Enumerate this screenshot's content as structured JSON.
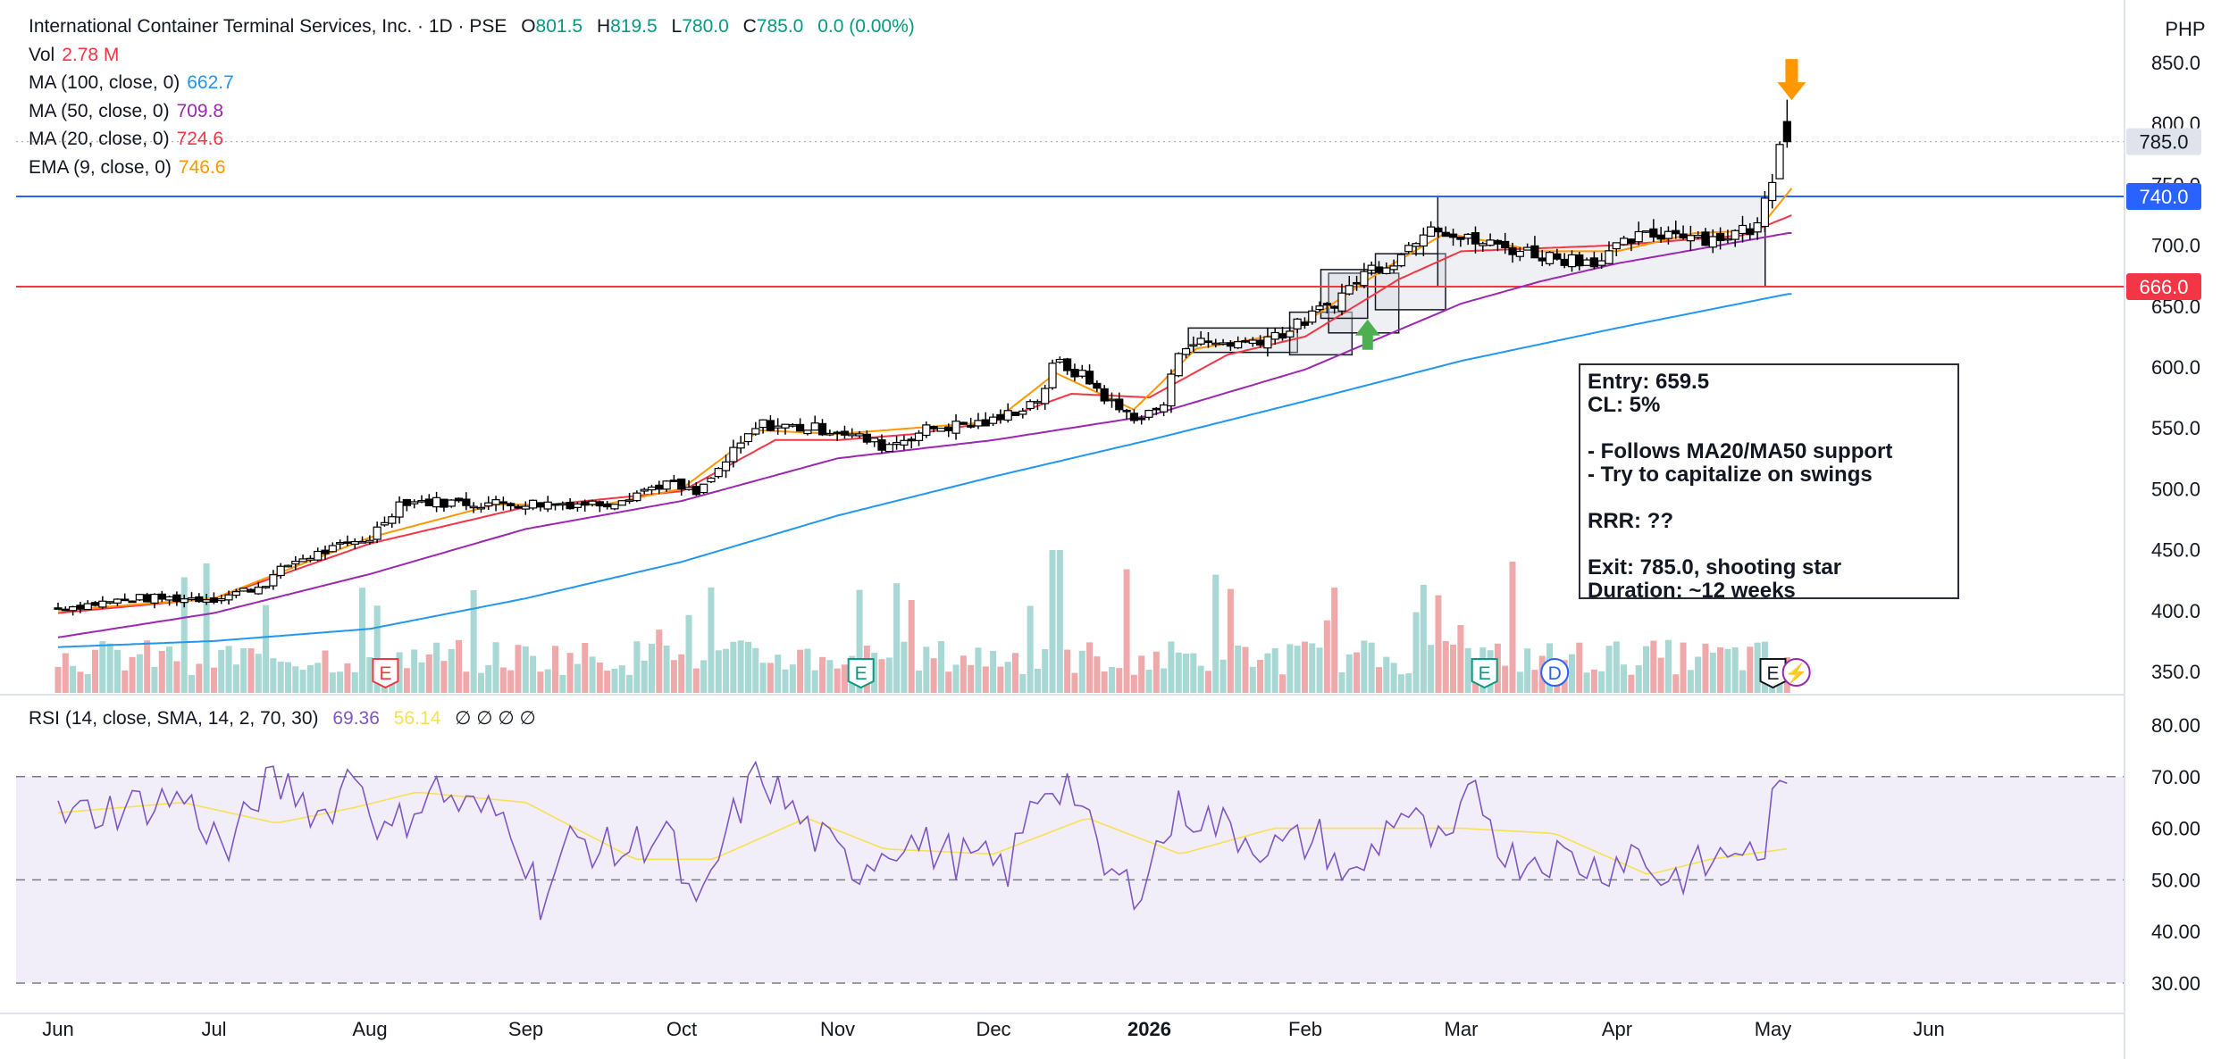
{
  "header": {
    "title": "International Container Terminal Services, Inc. · 1D · PSE",
    "ohlc": {
      "o_label": "O",
      "o": "801.5",
      "h_label": "H",
      "h": "819.5",
      "l_label": "L",
      "l": "780.0",
      "c_label": "C",
      "c": "785.0",
      "change": "0.0 (0.00%)"
    },
    "currency": "PHP"
  },
  "indicators": [
    {
      "label": "Vol",
      "value": "2.78 M",
      "color": "#f23645"
    },
    {
      "label": "MA (100, close, 0)",
      "value": "662.7",
      "color": "#2196f3"
    },
    {
      "label": "MA (50, close, 0)",
      "value": "709.8",
      "color": "#9c27b0"
    },
    {
      "label": "MA (20, close, 0)",
      "value": "724.6",
      "color": "#f23645"
    },
    {
      "label": "EMA (9, close, 0)",
      "value": "746.6",
      "color": "#ff9800"
    }
  ],
  "rsi_legend": {
    "label": "RSI (14, close, SMA, 14, 2, 70, 30)",
    "value": "69.36",
    "sma_value": "56.14",
    "value_color": "#7e57c2",
    "sma_color": "#f7e055",
    "placeholders": "∅ ∅ ∅ ∅"
  },
  "note": {
    "lines": [
      "Entry: 659.5",
      "CL: 5%",
      "",
      "- Follows MA20/MA50 support",
      "- Try to capitalize on swings",
      "",
      "RRR: ??",
      "",
      "Exit: 785.0, shooting star",
      "Duration: ~12 weeks"
    ]
  },
  "price_tags": {
    "last": "785.0",
    "blue_line": "740.0",
    "red_line": "666.0",
    "blue_color": "#2962ff",
    "red_color": "#f23645"
  },
  "event_markers": [
    {
      "letter": "E",
      "color": "#f23645",
      "month_index": 2.1
    },
    {
      "letter": "E",
      "color": "#089981",
      "month_index": 5.15
    },
    {
      "letter": "E",
      "color": "#089981",
      "month_index": 9.15
    },
    {
      "letter": "D",
      "color": "#2962ff",
      "month_index": 9.6
    },
    {
      "letter": "E",
      "color": "#131722",
      "month_index": 11.0
    },
    {
      "letter": "⚡",
      "color": "#9c27b0",
      "month_index": 11.15
    }
  ],
  "chart_data": [
    {
      "type": "candlestick",
      "title": "International Container Terminal Services, Inc. · 1D · PSE",
      "x_months": [
        "Jun",
        "Jul",
        "Aug",
        "Sep",
        "Oct",
        "Nov",
        "Dec",
        "2026",
        "Feb",
        "Mar",
        "Apr",
        "May",
        "Jun"
      ],
      "y_ticks": [
        "350.0",
        "400.0",
        "450.0",
        "500.0",
        "550.0",
        "600.0",
        "650.0",
        "700.0",
        "750.0",
        "800.0",
        "850.0"
      ],
      "ylim": [
        320,
        860
      ],
      "close_anchors": [
        {
          "t": 0.0,
          "v": 402
        },
        {
          "t": 0.5,
          "v": 410
        },
        {
          "t": 1.0,
          "v": 410
        },
        {
          "t": 1.3,
          "v": 420
        },
        {
          "t": 1.5,
          "v": 440
        },
        {
          "t": 2.0,
          "v": 460
        },
        {
          "t": 2.2,
          "v": 490
        },
        {
          "t": 2.8,
          "v": 488
        },
        {
          "t": 3.5,
          "v": 488
        },
        {
          "t": 3.9,
          "v": 505
        },
        {
          "t": 4.1,
          "v": 495
        },
        {
          "t": 4.3,
          "v": 525
        },
        {
          "t": 4.5,
          "v": 553
        },
        {
          "t": 5.0,
          "v": 548
        },
        {
          "t": 5.3,
          "v": 535
        },
        {
          "t": 5.6,
          "v": 550
        },
        {
          "t": 6.0,
          "v": 555
        },
        {
          "t": 6.3,
          "v": 575
        },
        {
          "t": 6.4,
          "v": 605
        },
        {
          "t": 6.6,
          "v": 590
        },
        {
          "t": 6.8,
          "v": 565
        },
        {
          "t": 6.95,
          "v": 558
        },
        {
          "t": 7.1,
          "v": 570
        },
        {
          "t": 7.2,
          "v": 620
        },
        {
          "t": 7.6,
          "v": 620
        },
        {
          "t": 7.9,
          "v": 630
        },
        {
          "t": 8.2,
          "v": 655
        },
        {
          "t": 8.4,
          "v": 680
        },
        {
          "t": 8.6,
          "v": 690
        },
        {
          "t": 8.8,
          "v": 720
        },
        {
          "t": 9.0,
          "v": 705
        },
        {
          "t": 9.3,
          "v": 698
        },
        {
          "t": 9.6,
          "v": 690
        },
        {
          "t": 9.9,
          "v": 688
        },
        {
          "t": 10.1,
          "v": 705
        },
        {
          "t": 10.4,
          "v": 712
        },
        {
          "t": 10.6,
          "v": 705
        },
        {
          "t": 10.9,
          "v": 715
        },
        {
          "t": 11.0,
          "v": 760
        },
        {
          "t": 11.07,
          "v": 801.5
        },
        {
          "t": 11.12,
          "v": 785
        }
      ],
      "last_candle": {
        "open": 801.5,
        "high": 819.5,
        "low": 780.0,
        "close": 785.0
      },
      "ma_series": [
        {
          "name": "MA (100, close, 0)",
          "color": "#2196f3",
          "anchors": [
            {
              "t": 0.0,
              "v": 370
            },
            {
              "t": 1.0,
              "v": 375
            },
            {
              "t": 2.0,
              "v": 385
            },
            {
              "t": 3.0,
              "v": 410
            },
            {
              "t": 4.0,
              "v": 440
            },
            {
              "t": 5.0,
              "v": 478
            },
            {
              "t": 6.0,
              "v": 510
            },
            {
              "t": 7.0,
              "v": 540
            },
            {
              "t": 8.0,
              "v": 572
            },
            {
              "t": 9.0,
              "v": 605
            },
            {
              "t": 10.0,
              "v": 632
            },
            {
              "t": 11.1,
              "v": 660
            }
          ]
        },
        {
          "name": "MA (50, close, 0)",
          "color": "#9c27b0",
          "anchors": [
            {
              "t": 0.0,
              "v": 378
            },
            {
              "t": 1.0,
              "v": 398
            },
            {
              "t": 2.0,
              "v": 430
            },
            {
              "t": 3.0,
              "v": 467
            },
            {
              "t": 4.0,
              "v": 490
            },
            {
              "t": 5.0,
              "v": 525
            },
            {
              "t": 6.0,
              "v": 540
            },
            {
              "t": 7.0,
              "v": 560
            },
            {
              "t": 8.0,
              "v": 598
            },
            {
              "t": 9.0,
              "v": 652
            },
            {
              "t": 9.5,
              "v": 670
            },
            {
              "t": 10.0,
              "v": 685
            },
            {
              "t": 11.1,
              "v": 710
            }
          ]
        },
        {
          "name": "MA (20, close, 0)",
          "color": "#f23645",
          "anchors": [
            {
              "t": 0.0,
              "v": 398
            },
            {
              "t": 1.0,
              "v": 410
            },
            {
              "t": 2.0,
              "v": 455
            },
            {
              "t": 3.0,
              "v": 485
            },
            {
              "t": 4.0,
              "v": 498
            },
            {
              "t": 4.6,
              "v": 540
            },
            {
              "t": 5.0,
              "v": 540
            },
            {
              "t": 5.5,
              "v": 545
            },
            {
              "t": 6.0,
              "v": 555
            },
            {
              "t": 6.5,
              "v": 578
            },
            {
              "t": 7.0,
              "v": 575
            },
            {
              "t": 7.5,
              "v": 610
            },
            {
              "t": 8.0,
              "v": 625
            },
            {
              "t": 8.6,
              "v": 672
            },
            {
              "t": 9.0,
              "v": 695
            },
            {
              "t": 10.0,
              "v": 700
            },
            {
              "t": 10.8,
              "v": 708
            },
            {
              "t": 11.12,
              "v": 724.6
            }
          ]
        },
        {
          "name": "EMA (9, close, 0)",
          "color": "#ff9800",
          "anchors": [
            {
              "t": 0.0,
              "v": 400
            },
            {
              "t": 1.0,
              "v": 410
            },
            {
              "t": 2.0,
              "v": 460
            },
            {
              "t": 2.8,
              "v": 487
            },
            {
              "t": 3.5,
              "v": 487
            },
            {
              "t": 4.0,
              "v": 500
            },
            {
              "t": 4.5,
              "v": 548
            },
            {
              "t": 5.0,
              "v": 545
            },
            {
              "t": 6.0,
              "v": 555
            },
            {
              "t": 6.4,
              "v": 595
            },
            {
              "t": 6.9,
              "v": 565
            },
            {
              "t": 7.3,
              "v": 615
            },
            {
              "t": 7.9,
              "v": 628
            },
            {
              "t": 8.5,
              "v": 680
            },
            {
              "t": 8.9,
              "v": 710
            },
            {
              "t": 9.5,
              "v": 695
            },
            {
              "t": 10.0,
              "v": 695
            },
            {
              "t": 10.5,
              "v": 710
            },
            {
              "t": 10.9,
              "v": 712
            },
            {
              "t": 11.12,
              "v": 746.6
            }
          ]
        }
      ],
      "horizontal_lines": [
        {
          "value": 740.0,
          "color": "#2962ff"
        },
        {
          "value": 666.0,
          "color": "#f23645"
        }
      ],
      "rectangles": [
        {
          "t0": 7.25,
          "t1": 7.95,
          "v0": 612,
          "v1": 632
        },
        {
          "t0": 7.9,
          "t1": 8.3,
          "v0": 610,
          "v1": 645
        },
        {
          "t0": 8.15,
          "t1": 8.6,
          "v0": 628,
          "v1": 677
        },
        {
          "t0": 8.1,
          "t1": 8.4,
          "v0": 640,
          "v1": 680
        },
        {
          "t0": 8.45,
          "t1": 8.9,
          "v0": 647,
          "v1": 693
        },
        {
          "t0": 8.85,
          "t1": 10.95,
          "v0": 666,
          "v1": 740
        }
      ],
      "arrows": [
        {
          "direction": "up",
          "t": 8.4,
          "v": 620,
          "color": "#4caf50"
        },
        {
          "direction": "down",
          "t": 11.12,
          "v": 825,
          "color": "#ff9800"
        }
      ]
    },
    {
      "type": "bar",
      "title": "Vol",
      "description": "daily volume bars, teal for up days and red for down days",
      "last_value": "2.78 M",
      "up_color": "#a7d8d3",
      "down_color": "#f0a9ab"
    },
    {
      "type": "line",
      "title": "RSI (14, close, SMA, 14, 2, 70, 30)",
      "y_ticks": [
        "30.00",
        "40.00",
        "50.00",
        "60.00",
        "70.00",
        "80.00"
      ],
      "ylim": [
        27,
        84
      ],
      "band": [
        30,
        70
      ],
      "levels": [
        70,
        50,
        30
      ],
      "series": [
        {
          "name": "RSI",
          "color": "#7e57c2",
          "last": 69.36
        },
        {
          "name": "SMA",
          "color": "#f7e055",
          "last": 56.14
        }
      ],
      "rsi_anchors": [
        {
          "t": 0.0,
          "v": 62
        },
        {
          "t": 0.4,
          "v": 64
        },
        {
          "t": 0.8,
          "v": 66
        },
        {
          "t": 1.1,
          "v": 55
        },
        {
          "t": 1.3,
          "v": 68
        },
        {
          "t": 1.5,
          "v": 68
        },
        {
          "t": 1.7,
          "v": 62
        },
        {
          "t": 1.9,
          "v": 72
        },
        {
          "t": 2.1,
          "v": 58
        },
        {
          "t": 2.4,
          "v": 68
        },
        {
          "t": 2.6,
          "v": 64
        },
        {
          "t": 2.9,
          "v": 62
        },
        {
          "t": 3.1,
          "v": 46
        },
        {
          "t": 3.3,
          "v": 58
        },
        {
          "t": 3.6,
          "v": 55
        },
        {
          "t": 3.9,
          "v": 60
        },
        {
          "t": 4.1,
          "v": 42
        },
        {
          "t": 4.3,
          "v": 60
        },
        {
          "t": 4.5,
          "v": 71
        },
        {
          "t": 4.8,
          "v": 60
        },
        {
          "t": 5.1,
          "v": 52
        },
        {
          "t": 5.4,
          "v": 58
        },
        {
          "t": 5.7,
          "v": 55
        },
        {
          "t": 6.1,
          "v": 52
        },
        {
          "t": 6.3,
          "v": 68
        },
        {
          "t": 6.5,
          "v": 69
        },
        {
          "t": 6.7,
          "v": 52
        },
        {
          "t": 6.9,
          "v": 48
        },
        {
          "t": 7.2,
          "v": 64
        },
        {
          "t": 7.5,
          "v": 60
        },
        {
          "t": 7.8,
          "v": 56
        },
        {
          "t": 8.1,
          "v": 58
        },
        {
          "t": 8.3,
          "v": 49
        },
        {
          "t": 8.6,
          "v": 64
        },
        {
          "t": 8.9,
          "v": 55
        },
        {
          "t": 9.1,
          "v": 68
        },
        {
          "t": 9.3,
          "v": 54
        },
        {
          "t": 9.6,
          "v": 55
        },
        {
          "t": 9.9,
          "v": 52
        },
        {
          "t": 10.1,
          "v": 56
        },
        {
          "t": 10.3,
          "v": 50
        },
        {
          "t": 10.6,
          "v": 53
        },
        {
          "t": 10.8,
          "v": 57
        },
        {
          "t": 10.9,
          "v": 52
        },
        {
          "t": 11.0,
          "v": 64
        },
        {
          "t": 11.12,
          "v": 69.36
        }
      ],
      "sma_anchors": [
        {
          "t": 0.0,
          "v": 63
        },
        {
          "t": 0.8,
          "v": 65
        },
        {
          "t": 1.4,
          "v": 61
        },
        {
          "t": 1.9,
          "v": 64
        },
        {
          "t": 2.3,
          "v": 67
        },
        {
          "t": 3.0,
          "v": 65
        },
        {
          "t": 3.7,
          "v": 54
        },
        {
          "t": 4.2,
          "v": 54
        },
        {
          "t": 4.8,
          "v": 62
        },
        {
          "t": 5.3,
          "v": 56
        },
        {
          "t": 6.0,
          "v": 55
        },
        {
          "t": 6.6,
          "v": 62
        },
        {
          "t": 7.2,
          "v": 55
        },
        {
          "t": 7.8,
          "v": 60
        },
        {
          "t": 8.4,
          "v": 60
        },
        {
          "t": 9.0,
          "v": 60
        },
        {
          "t": 9.6,
          "v": 59
        },
        {
          "t": 10.2,
          "v": 51
        },
        {
          "t": 10.6,
          "v": 54
        },
        {
          "t": 11.12,
          "v": 56.14
        }
      ]
    }
  ]
}
